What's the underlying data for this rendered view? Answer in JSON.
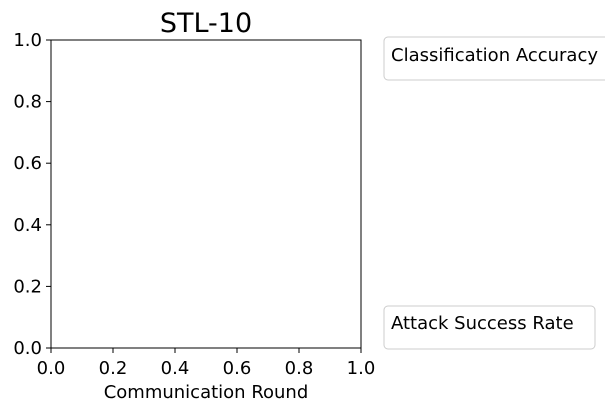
{
  "chart_data": {
    "type": "line",
    "title": "STL-10",
    "xlabel": "Communication Round",
    "ylabel": "",
    "xlim": [
      0.0,
      1.0
    ],
    "ylim": [
      0.0,
      1.0
    ],
    "xticks": [
      "0.0",
      "0.2",
      "0.4",
      "0.6",
      "0.8",
      "1.0"
    ],
    "yticks": [
      "0.0",
      "0.2",
      "0.4",
      "0.6",
      "0.8",
      "1.0"
    ],
    "grid": false,
    "series": [],
    "legends": [
      {
        "title": "Classification Accuracy",
        "placement": "outside-upper-right"
      },
      {
        "title": "Attack Success Rate",
        "placement": "outside-lower-right"
      }
    ]
  }
}
